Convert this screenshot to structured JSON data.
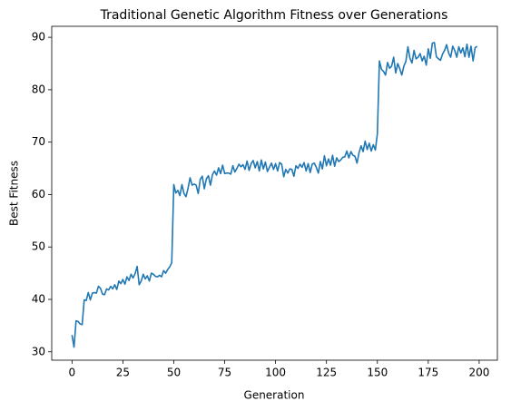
{
  "chart_data": {
    "type": "line",
    "title": "Traditional Genetic Algorithm Fitness over Generations",
    "xlabel": "Generation",
    "ylabel": "Best Fitness",
    "x": [
      0,
      1,
      2,
      3,
      4,
      5,
      6,
      7,
      8,
      9,
      10,
      11,
      12,
      13,
      14,
      15,
      16,
      17,
      18,
      19,
      20,
      21,
      22,
      23,
      24,
      25,
      26,
      27,
      28,
      29,
      30,
      31,
      32,
      33,
      34,
      35,
      36,
      37,
      38,
      39,
      40,
      41,
      42,
      43,
      44,
      45,
      46,
      47,
      48,
      49,
      50,
      51,
      52,
      53,
      54,
      55,
      56,
      57,
      58,
      59,
      60,
      61,
      62,
      63,
      64,
      65,
      66,
      67,
      68,
      69,
      70,
      71,
      72,
      73,
      74,
      75,
      76,
      77,
      78,
      79,
      80,
      81,
      82,
      83,
      84,
      85,
      86,
      87,
      88,
      89,
      90,
      91,
      92,
      93,
      94,
      95,
      96,
      97,
      98,
      99,
      100,
      101,
      102,
      103,
      104,
      105,
      106,
      107,
      108,
      109,
      110,
      111,
      112,
      113,
      114,
      115,
      116,
      117,
      118,
      119,
      120,
      121,
      122,
      123,
      124,
      125,
      126,
      127,
      128,
      129,
      130,
      131,
      132,
      133,
      134,
      135,
      136,
      137,
      138,
      139,
      140,
      141,
      142,
      143,
      144,
      145,
      146,
      147,
      148,
      149,
      150,
      151,
      152,
      153,
      154,
      155,
      156,
      157,
      158,
      159,
      160,
      161,
      162,
      163,
      164,
      165,
      166,
      167,
      168,
      169,
      170,
      171,
      172,
      173,
      174,
      175,
      176,
      177,
      178,
      179,
      180,
      181,
      182,
      183,
      184,
      185,
      186,
      187,
      188,
      189,
      190,
      191,
      192,
      193,
      194,
      195,
      196,
      197,
      198,
      199
    ],
    "series": [
      {
        "name": "Best Fitness",
        "color": "#1f77b4",
        "values": [
          33.2,
          30.9,
          35.9,
          35.8,
          35.3,
          35.2,
          39.9,
          39.8,
          41.3,
          39.9,
          41.2,
          41.3,
          41.2,
          42.5,
          42.1,
          41.0,
          40.9,
          42.0,
          41.8,
          42.5,
          42.0,
          42.8,
          41.9,
          43.5,
          43.0,
          43.8,
          42.9,
          44.3,
          43.6,
          44.8,
          44.1,
          44.9,
          46.3,
          42.8,
          43.5,
          44.8,
          43.9,
          44.5,
          43.5,
          45.0,
          44.8,
          44.4,
          44.3,
          44.6,
          44.3,
          45.5,
          45.0,
          45.7,
          46.2,
          47.0,
          61.9,
          60.3,
          60.8,
          59.8,
          61.9,
          60.2,
          59.6,
          61.2,
          63.2,
          61.8,
          62.0,
          61.8,
          60.2,
          62.9,
          63.5,
          61.1,
          63.0,
          63.6,
          61.8,
          63.8,
          64.5,
          63.7,
          65.1,
          64.0,
          65.6,
          64.0,
          64.1,
          64.1,
          63.9,
          65.5,
          64.3,
          65.0,
          65.8,
          65.3,
          65.7,
          64.8,
          66.4,
          64.6,
          65.9,
          66.5,
          65.1,
          66.3,
          64.5,
          66.6,
          64.9,
          66.2,
          64.4,
          65.2,
          66.0,
          64.8,
          65.9,
          64.5,
          66.1,
          65.8,
          63.4,
          64.8,
          64.1,
          64.9,
          64.8,
          63.5,
          65.5,
          65.0,
          65.8,
          65.2,
          66.1,
          64.5,
          65.9,
          64.2,
          65.8,
          66.0,
          65.2,
          64.1,
          66.3,
          64.9,
          67.4,
          65.5,
          66.8,
          65.6,
          67.5,
          65.4,
          67.0,
          66.3,
          66.6,
          67.1,
          67.2,
          68.3,
          67.0,
          68.2,
          67.5,
          67.3,
          66.0,
          68.0,
          69.3,
          68.2,
          70.2,
          68.6,
          69.8,
          68.3,
          69.5,
          68.5,
          71.6,
          85.5,
          83.9,
          83.5,
          82.8,
          85.2,
          84.1,
          84.5,
          86.2,
          83.2,
          85.0,
          84.0,
          82.8,
          84.5,
          85.4,
          88.2,
          86.0,
          85.1,
          87.5,
          85.9,
          86.2,
          86.9,
          85.5,
          86.4,
          84.7,
          87.8,
          86.0,
          88.9,
          89.0,
          86.3,
          85.9,
          85.6,
          86.8,
          87.5,
          88.6,
          87.0,
          86.2,
          88.3,
          87.5,
          86.2,
          88.2,
          87.0,
          88.0,
          86.3,
          88.7,
          86.2,
          88.3,
          85.5,
          88.0,
          88.3
        ]
      }
    ],
    "xlim": [
      -9.95,
      208.95
    ],
    "ylim": [
      28.4,
      92.1
    ],
    "xticks": [
      0,
      25,
      50,
      75,
      100,
      125,
      150,
      175,
      200
    ],
    "yticks": [
      30,
      40,
      50,
      60,
      70,
      80,
      90
    ],
    "grid": false
  }
}
